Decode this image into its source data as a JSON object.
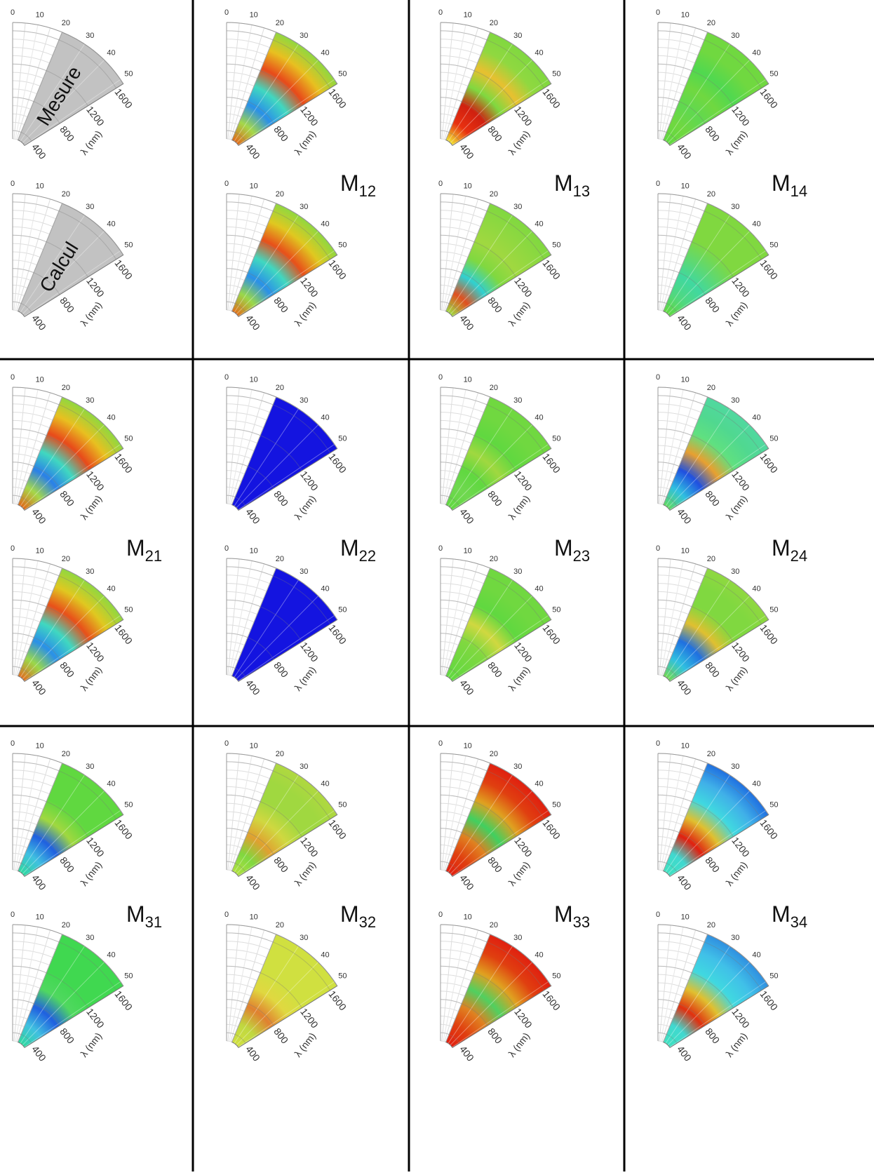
{
  "axes": {
    "angle_ticks": [
      0,
      10,
      20,
      30,
      40,
      50
    ],
    "wavelength_ticks": [
      400,
      800,
      1200,
      1600
    ],
    "wavelength_label": "λ (nm)",
    "angle_lim": [
      0,
      52
    ],
    "wavelength_lim": [
      300,
      1700
    ],
    "data_angle_lim": [
      20,
      52
    ]
  },
  "cells": [
    {
      "measure_text": "Mesure",
      "calc_text": "Calcul",
      "measure_colors": [
        "#c2c2c2"
      ],
      "calc_colors": [
        "#c2c2c2"
      ]
    },
    {
      "label": "M",
      "subscript": "12",
      "measure_colors": [
        "#e06a1a",
        "#a5d84a",
        "#2a90e8",
        "#40d8c0",
        "#e84a1a",
        "#e8c020",
        "#90d840"
      ],
      "calc_colors": [
        "#e0701a",
        "#9ad84a",
        "#2a90e8",
        "#40d8c0",
        "#e8501a",
        "#e0c820",
        "#90d840"
      ]
    },
    {
      "label": "M",
      "subscript": "13",
      "measure_colors": [
        "#f0e030",
        "#e83010",
        "#d02010",
        "#80d840",
        "#e8c030",
        "#90d840",
        "#80d840"
      ],
      "calc_colors": [
        "#a0d840",
        "#e05020",
        "#30d0d0",
        "#80d840",
        "#a0d840",
        "#90d840",
        "#80d840"
      ]
    },
    {
      "label": "M",
      "subscript": "14",
      "measure_colors": [
        "#60d840",
        "#70d840",
        "#60d850",
        "#70d840",
        "#50d850",
        "#70d840",
        "#70d840"
      ],
      "calc_colors": [
        "#60d840",
        "#50d880",
        "#40d8a0",
        "#60d870",
        "#80d840",
        "#80d840",
        "#80d840"
      ]
    },
    {
      "label": "M",
      "subscript": "21",
      "measure_colors": [
        "#e06a1a",
        "#a5d84a",
        "#2a80e8",
        "#40d8c0",
        "#e84a1a",
        "#e8c020",
        "#90d840"
      ],
      "calc_colors": [
        "#e07020",
        "#9ad84a",
        "#2a90e8",
        "#40d8c0",
        "#e8501a",
        "#e0c820",
        "#90d840"
      ]
    },
    {
      "label": "M",
      "subscript": "22",
      "measure_colors": [
        "#1414e0"
      ],
      "calc_colors": [
        "#1414e0"
      ]
    },
    {
      "label": "M",
      "subscript": "23",
      "measure_colors": [
        "#60d840",
        "#70d850",
        "#60d840",
        "#a0d840",
        "#60d840",
        "#70d840",
        "#70d840"
      ],
      "calc_colors": [
        "#60d840",
        "#70d840",
        "#80d840",
        "#d0d840",
        "#60d840",
        "#70d840",
        "#70d840"
      ]
    },
    {
      "label": "M",
      "subscript": "24",
      "measure_colors": [
        "#60d860",
        "#30c0e0",
        "#2050e0",
        "#e8a030",
        "#60e080",
        "#50d890",
        "#50d8a0"
      ],
      "calc_colors": [
        "#70d850",
        "#30c0e0",
        "#2070e0",
        "#e0c030",
        "#80d840",
        "#80d840",
        "#90d840"
      ]
    },
    {
      "label": "M",
      "subscript": "31",
      "measure_colors": [
        "#30d8a0",
        "#40c0e0",
        "#2060e0",
        "#a0d840",
        "#60d840",
        "#60d840",
        "#60d840"
      ],
      "calc_colors": [
        "#30d8a0",
        "#40c0e0",
        "#2060e0",
        "#50d860",
        "#40d850",
        "#40d850",
        "#40d850"
      ]
    },
    {
      "label": "M",
      "subscript": "32",
      "measure_colors": [
        "#b0e040",
        "#80d840",
        "#e0a030",
        "#d0d840",
        "#a0d840",
        "#a0d840",
        "#b0d840"
      ],
      "calc_colors": [
        "#d0e040",
        "#c0d840",
        "#e08030",
        "#e0d840",
        "#d0e040",
        "#d0e040",
        "#d0e040"
      ]
    },
    {
      "label": "M",
      "subscript": "33",
      "measure_colors": [
        "#e02010",
        "#e04010",
        "#e08020",
        "#40d060",
        "#e0a020",
        "#e04010",
        "#e02010"
      ],
      "calc_colors": [
        "#e02010",
        "#e04010",
        "#e08020",
        "#50d060",
        "#e0a020",
        "#e04010",
        "#e02010"
      ]
    },
    {
      "label": "M",
      "subscript": "34",
      "measure_colors": [
        "#40e0c0",
        "#40d8d0",
        "#e02010",
        "#e0c030",
        "#40d8e0",
        "#40b0e8",
        "#2070e0"
      ],
      "calc_colors": [
        "#40e0c0",
        "#40d8d0",
        "#e03010",
        "#e0c030",
        "#40d8e0",
        "#40c0e8",
        "#3090e0"
      ]
    }
  ]
}
